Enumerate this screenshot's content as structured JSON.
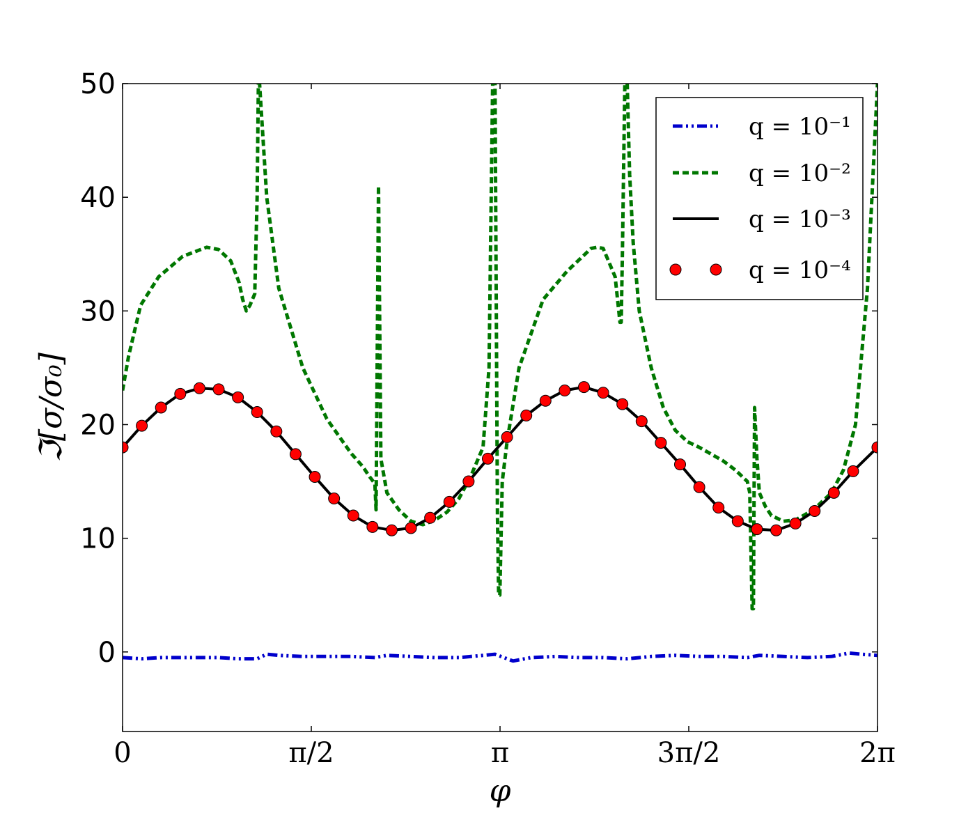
{
  "chart_data": {
    "type": "line",
    "xlabel": "φ",
    "ylabel": "ℑ[σ/σ₀]",
    "xlim": [
      0,
      6.283185
    ],
    "ylim": [
      -7,
      50
    ],
    "x_ticks": [
      {
        "value": 0,
        "label": "0"
      },
      {
        "value": 1.570796,
        "label": "π/2"
      },
      {
        "value": 3.141593,
        "label": "π"
      },
      {
        "value": 4.712389,
        "label": "3π/2"
      },
      {
        "value": 6.283185,
        "label": "2π"
      }
    ],
    "y_ticks": [
      {
        "value": 0,
        "label": "0"
      },
      {
        "value": 10,
        "label": "10"
      },
      {
        "value": 20,
        "label": "20"
      },
      {
        "value": 30,
        "label": "30"
      },
      {
        "value": 40,
        "label": "40"
      },
      {
        "value": 50,
        "label": "50"
      }
    ],
    "grid": false,
    "legend_position": "top-right",
    "series": [
      {
        "name": "q = 10⁻¹",
        "color": "#0000cc",
        "style": "dash-dot-dot",
        "x": [
          0.0,
          0.16,
          0.32,
          0.48,
          0.64,
          0.8,
          0.96,
          1.12,
          1.2,
          1.3,
          1.5,
          1.7,
          1.9,
          2.1,
          2.2,
          2.4,
          2.6,
          2.8,
          3.0,
          3.1,
          3.2,
          3.25,
          3.4,
          3.6,
          3.8,
          4.0,
          4.2,
          4.4,
          4.6,
          4.8,
          5.0,
          5.2,
          5.3,
          5.5,
          5.7,
          5.9,
          6.05,
          6.15,
          6.283
        ],
        "y": [
          -0.5,
          -0.6,
          -0.5,
          -0.5,
          -0.5,
          -0.5,
          -0.6,
          -0.6,
          -0.2,
          -0.3,
          -0.4,
          -0.4,
          -0.4,
          -0.5,
          -0.3,
          -0.4,
          -0.5,
          -0.5,
          -0.3,
          -0.2,
          -0.6,
          -0.8,
          -0.5,
          -0.4,
          -0.5,
          -0.5,
          -0.6,
          -0.4,
          -0.3,
          -0.4,
          -0.4,
          -0.5,
          -0.3,
          -0.4,
          -0.5,
          -0.4,
          -0.1,
          -0.2,
          -0.3
        ]
      },
      {
        "name": "q = 10⁻²",
        "color": "#007700",
        "style": "dashed",
        "x": [
          0.0,
          0.05,
          0.15,
          0.3,
          0.5,
          0.7,
          0.8,
          0.9,
          0.97,
          1.0,
          1.03,
          1.06,
          1.1,
          1.12,
          1.13,
          1.14,
          1.2,
          1.3,
          1.5,
          1.7,
          1.9,
          2.0,
          2.05,
          2.1,
          2.11,
          2.13,
          2.15,
          2.2,
          2.3,
          2.4,
          2.5,
          2.6,
          2.7,
          2.8,
          2.9,
          3.0,
          3.05,
          3.08,
          3.1,
          3.12,
          3.13,
          3.14,
          3.16,
          3.2,
          3.3,
          3.5,
          3.7,
          3.9,
          3.95,
          4.0,
          4.1,
          4.14,
          4.15,
          4.16,
          4.18,
          4.2,
          4.22,
          4.25,
          4.3,
          4.4,
          4.5,
          4.6,
          4.7,
          4.8,
          5.0,
          5.1,
          5.2,
          5.22,
          5.24,
          5.25,
          5.26,
          5.28,
          5.3,
          5.35,
          5.4,
          5.5,
          5.6,
          5.75,
          5.9,
          6.0,
          6.1,
          6.2,
          6.283
        ],
        "y": [
          23.0,
          26.0,
          30.5,
          33.0,
          34.8,
          35.6,
          35.4,
          34.4,
          32.5,
          31.0,
          30.0,
          30.5,
          31.5,
          40.0,
          50.0,
          50.0,
          40.0,
          32.0,
          25.0,
          20.5,
          17.5,
          16.3,
          15.5,
          14.8,
          12.5,
          41.0,
          17.0,
          14.0,
          12.5,
          11.5,
          11.2,
          11.6,
          12.3,
          13.5,
          15.5,
          18.0,
          25.0,
          50.0,
          50.0,
          12.0,
          5.0,
          5.0,
          15.0,
          18.5,
          25.0,
          31.0,
          33.5,
          35.5,
          35.6,
          35.5,
          33.0,
          29.0,
          29.0,
          35.0,
          50.0,
          50.0,
          42.0,
          36.0,
          30.0,
          25.0,
          21.5,
          19.5,
          18.5,
          18.0,
          16.8,
          16.0,
          15.0,
          14.0,
          3.8,
          3.8,
          21.5,
          17.0,
          14.0,
          12.8,
          12.0,
          11.5,
          11.6,
          12.5,
          14.0,
          16.0,
          20.0,
          32.0,
          50.0
        ]
      },
      {
        "name": "q = 10⁻³",
        "color": "#000000",
        "style": "solid",
        "x": [
          0.0,
          0.16,
          0.32,
          0.48,
          0.64,
          0.8,
          0.96,
          1.12,
          1.28,
          1.44,
          1.6,
          1.76,
          1.92,
          2.08,
          2.24,
          2.4,
          2.56,
          2.72,
          2.88,
          3.04,
          3.2,
          3.36,
          3.52,
          3.68,
          3.84,
          4.0,
          4.16,
          4.32,
          4.48,
          4.64,
          4.8,
          4.96,
          5.12,
          5.28,
          5.44,
          5.6,
          5.76,
          5.92,
          6.08,
          6.283
        ],
        "y": [
          18.0,
          19.9,
          21.5,
          22.7,
          23.2,
          23.1,
          22.4,
          21.1,
          19.4,
          17.4,
          15.4,
          13.5,
          12.0,
          11.0,
          10.7,
          10.9,
          11.8,
          13.2,
          15.0,
          17.0,
          18.9,
          20.8,
          22.1,
          23.0,
          23.3,
          22.8,
          21.8,
          20.3,
          18.4,
          16.5,
          14.5,
          12.7,
          11.5,
          10.8,
          10.7,
          11.3,
          12.4,
          14.0,
          15.9,
          18.0
        ]
      },
      {
        "name": "q = 10⁻⁴",
        "color": "#ff0000",
        "style": "markers",
        "x": [
          0.0,
          0.16,
          0.32,
          0.48,
          0.64,
          0.8,
          0.96,
          1.12,
          1.28,
          1.44,
          1.6,
          1.76,
          1.92,
          2.08,
          2.24,
          2.4,
          2.56,
          2.72,
          2.88,
          3.04,
          3.2,
          3.36,
          3.52,
          3.68,
          3.84,
          4.0,
          4.16,
          4.32,
          4.48,
          4.64,
          4.8,
          4.96,
          5.12,
          5.28,
          5.44,
          5.6,
          5.76,
          5.92,
          6.08,
          6.283
        ],
        "y": [
          18.0,
          19.9,
          21.5,
          22.7,
          23.2,
          23.1,
          22.4,
          21.1,
          19.4,
          17.4,
          15.4,
          13.5,
          12.0,
          11.0,
          10.7,
          10.9,
          11.8,
          13.2,
          15.0,
          17.0,
          18.9,
          20.8,
          22.1,
          23.0,
          23.3,
          22.8,
          21.8,
          20.3,
          18.4,
          16.5,
          14.5,
          12.7,
          11.5,
          10.8,
          10.7,
          11.3,
          12.4,
          14.0,
          15.9,
          18.0
        ]
      }
    ]
  }
}
